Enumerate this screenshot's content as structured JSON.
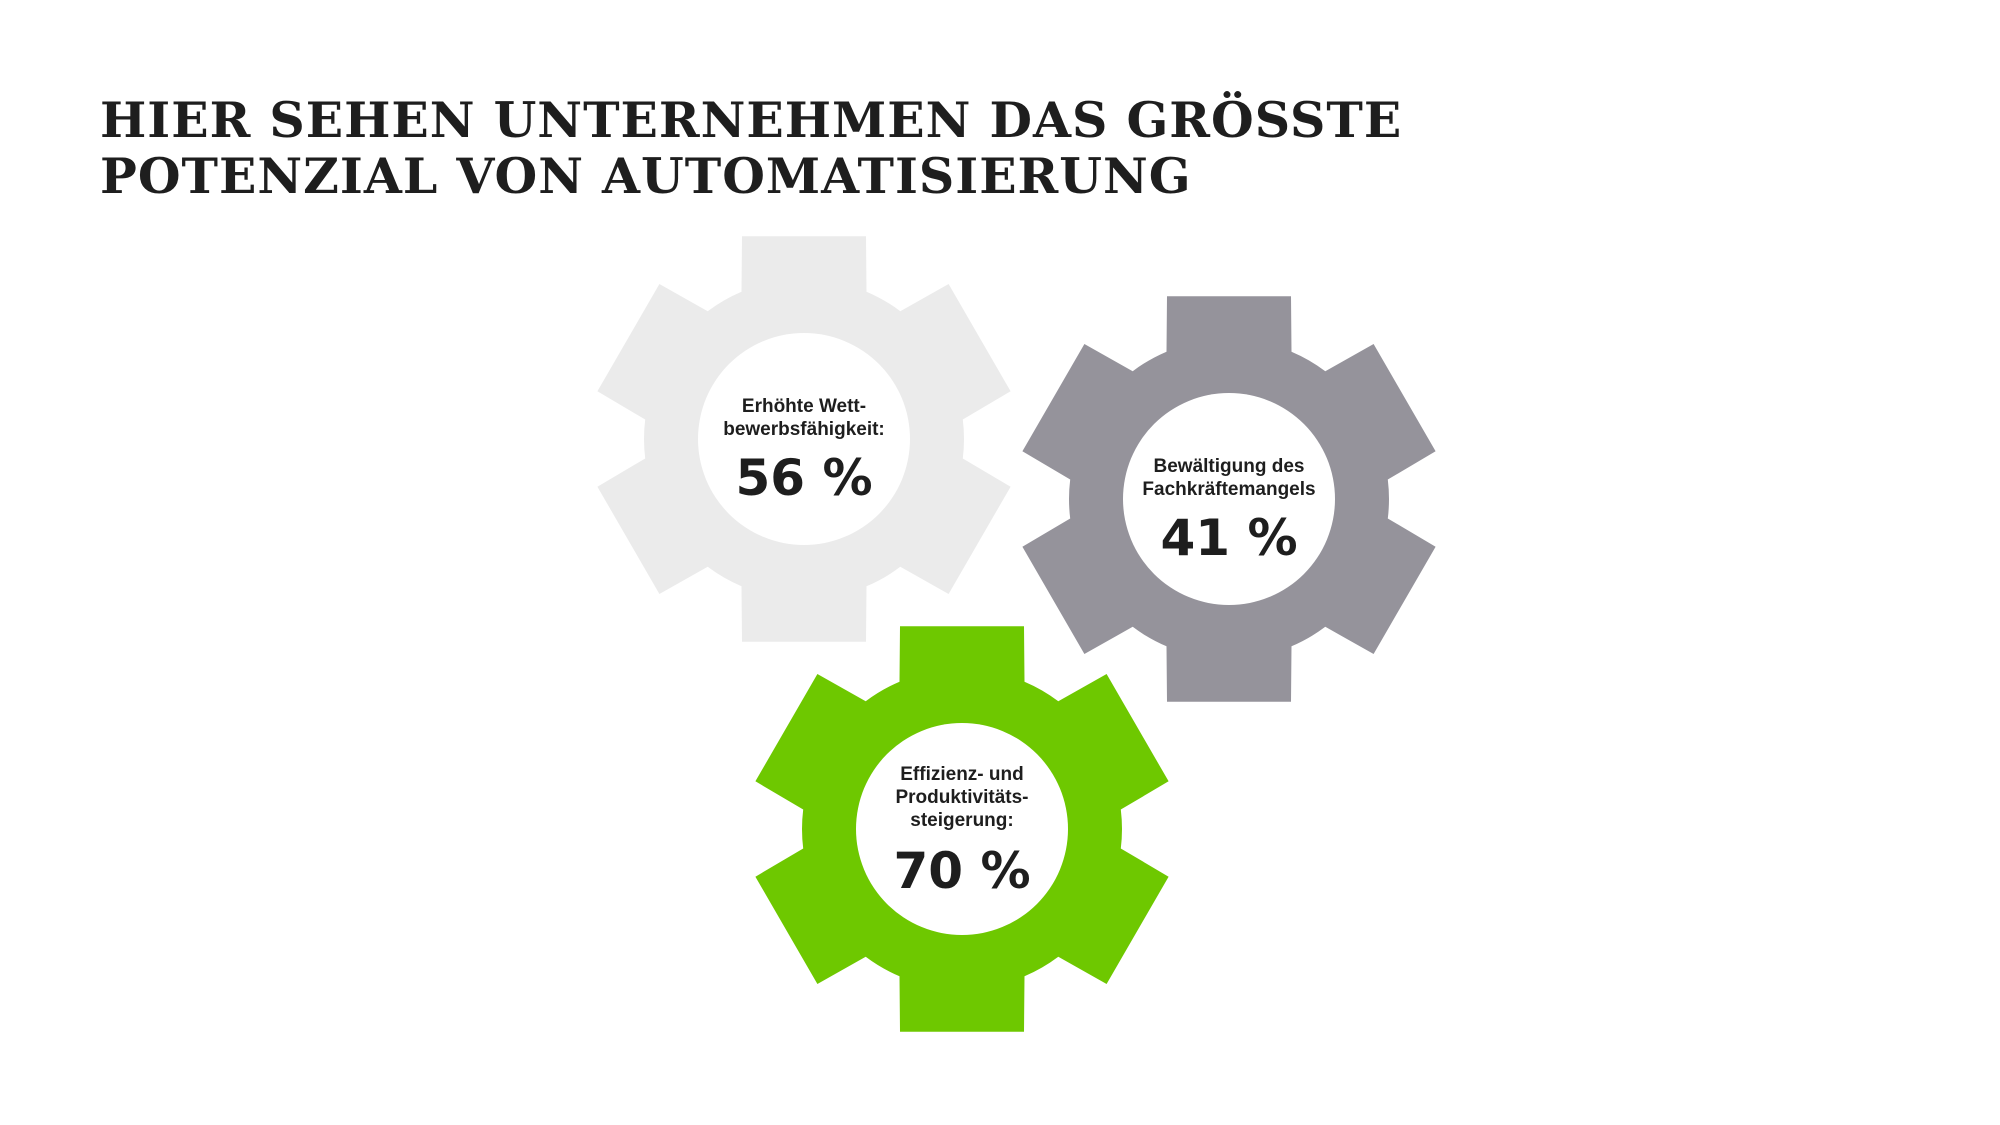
{
  "title": {
    "line1": "HIER SEHEN UNTERNEHMEN DAS GRÖSSTE",
    "line2": "POTENZIAL VON AUTOMATISIERUNG"
  },
  "colors": {
    "gear_light": "#ebebeb",
    "gear_gray": "#95939b",
    "gear_green": "#6ec800",
    "hub": "#ffffff",
    "text": "#1e1e1e"
  },
  "chart_data": {
    "type": "infographic",
    "unit": "%",
    "items": [
      {
        "label_lines": [
          "Erhöhte Wett-",
          "bewerbsfähigkeit:"
        ],
        "value": 56,
        "value_label": "56 %",
        "color": "#ebebeb"
      },
      {
        "label_lines": [
          "Bewältigung des",
          "Fachkräftemangels"
        ],
        "value": 41,
        "value_label": "41 %",
        "color": "#95939b"
      },
      {
        "label_lines": [
          "Effizienz- und",
          "Produktivitäts-",
          "steigerung:"
        ],
        "value": 70,
        "value_label": "70 %",
        "color": "#6ec800"
      }
    ]
  }
}
